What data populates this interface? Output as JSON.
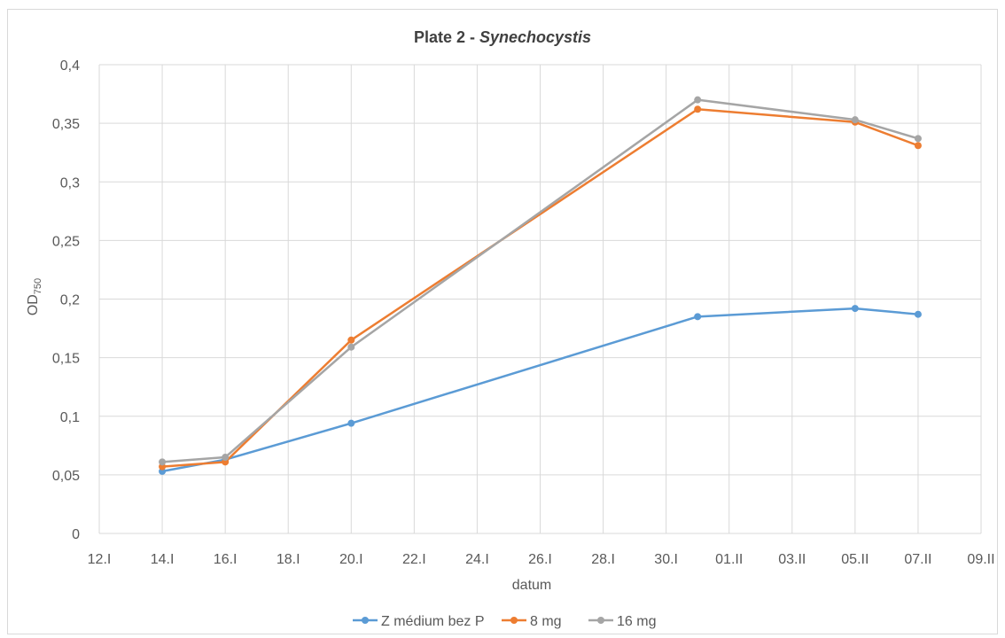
{
  "chart_data": {
    "type": "line",
    "title": "Plate 2 - ",
    "title_italic": "Synechocystis",
    "xlabel": "datum",
    "ylabel": "OD",
    "ylabel_sub": "750",
    "ylim": [
      0,
      0.4
    ],
    "y_ticks": [
      0,
      0.05,
      0.1,
      0.15,
      0.2,
      0.25,
      0.3,
      0.35,
      0.4
    ],
    "y_tick_labels": [
      "0",
      "0,05",
      "0,1",
      "0,15",
      "0,2",
      "0,25",
      "0,3",
      "0,35",
      "0,4"
    ],
    "x_range_days": [
      0,
      28
    ],
    "x_ticks": [
      0,
      2,
      4,
      6,
      8,
      10,
      12,
      14,
      16,
      18,
      20,
      22,
      24,
      26,
      28
    ],
    "x_tick_labels": [
      "12.I",
      "14.I",
      "16.I",
      "18.I",
      "20.I",
      "22.I",
      "24.I",
      "26.I",
      "28.I",
      "30.I",
      "01.II",
      "03.II",
      "05.II",
      "07.II",
      "09.II"
    ],
    "x_dates": [
      "14.I",
      "16.I",
      "20.I",
      "31.I",
      "05.II",
      "07.II"
    ],
    "grid": true,
    "legend_position": "bottom",
    "series": [
      {
        "name": "Z médium bez P",
        "color": "#5b9bd5",
        "values": [
          0.053,
          0.063,
          0.094,
          0.185,
          0.192,
          0.187
        ]
      },
      {
        "name": "8 mg",
        "color": "#ed7d31",
        "values": [
          0.057,
          0.061,
          0.165,
          0.362,
          0.351,
          0.331
        ]
      },
      {
        "name": "16 mg",
        "color": "#a5a5a5",
        "values": [
          0.061,
          0.065,
          0.159,
          0.37,
          0.353,
          0.337
        ]
      }
    ]
  }
}
